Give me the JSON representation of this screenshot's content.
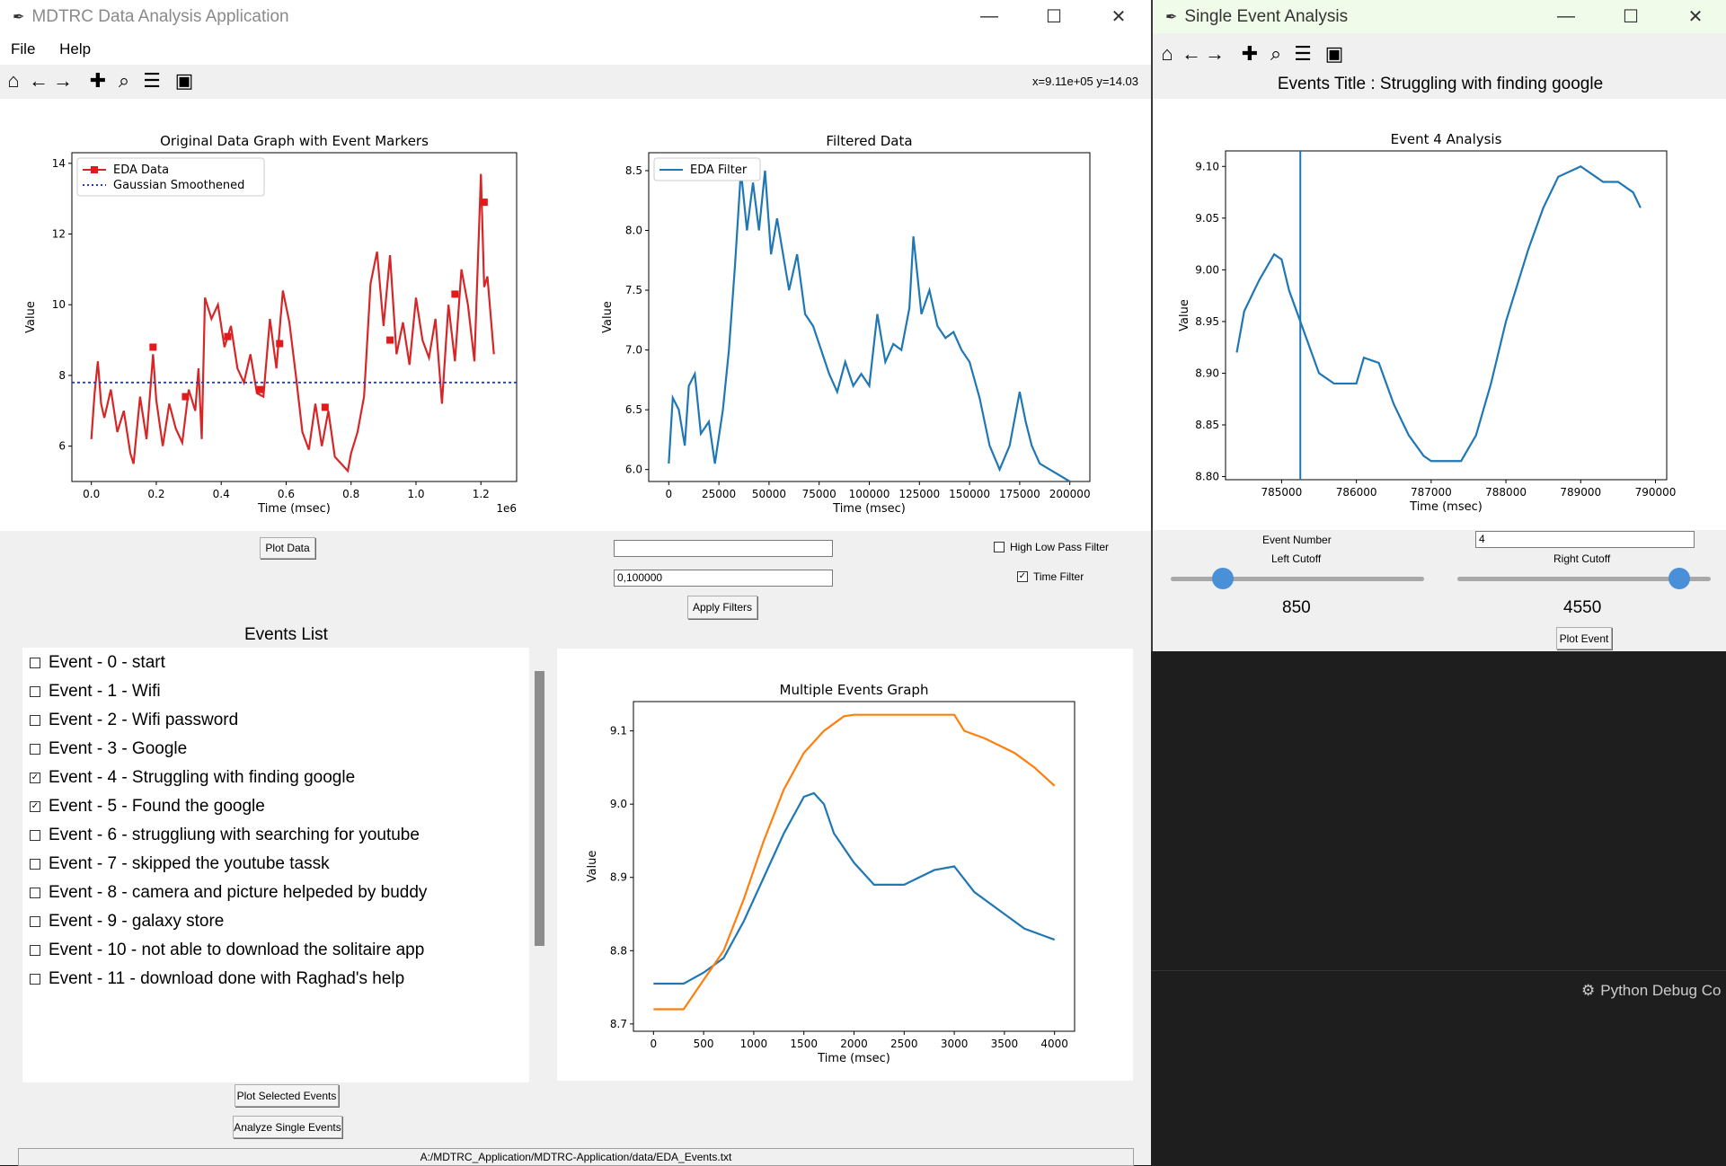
{
  "main_window": {
    "title": "MDTRC Data Analysis Application",
    "menu": [
      "File",
      "Help"
    ],
    "coord_readout": "x=9.11e+05 y=14.03"
  },
  "toolbar_icons": [
    "home-icon",
    "back-arrow-icon",
    "forward-arrow-icon",
    "pan-icon",
    "zoom-icon",
    "configure-subplots-icon",
    "save-icon"
  ],
  "controls": {
    "plot_data": "Plot Data",
    "filter_entry_1": "",
    "filter_entry_2": "0,100000",
    "high_low_pass": "High Low Pass Filter",
    "high_low_pass_checked": false,
    "time_filter": "Time Filter",
    "time_filter_checked": true,
    "apply_filters": "Apply Filters",
    "plot_selected": "Plot Selected Events",
    "analyze_single": "Analyze Single Events"
  },
  "events": {
    "title": "Events List",
    "items": [
      {
        "label": "Event - 0 - start",
        "checked": false
      },
      {
        "label": "Event - 1 - Wifi",
        "checked": false
      },
      {
        "label": "Event - 2 - Wifi password",
        "checked": false
      },
      {
        "label": "Event - 3 - Google",
        "checked": false
      },
      {
        "label": "Event - 4 - Struggling with finding google",
        "checked": true
      },
      {
        "label": "Event - 5 - Found the google",
        "checked": true
      },
      {
        "label": "Event - 6 - struggliung with searching for youtube",
        "checked": false
      },
      {
        "label": "Event - 7 - skipped the youtube tassk",
        "checked": false
      },
      {
        "label": "Event - 8 - camera and picture helpeded by buddy",
        "checked": false
      },
      {
        "label": "Event - 9 - galaxy store",
        "checked": false
      },
      {
        "label": "Event - 10 - not able to download the solitaire app",
        "checked": false
      },
      {
        "label": "Event - 11 - download done with Raghad's help",
        "checked": false
      }
    ]
  },
  "status_path": "A:/MDTRC_Application/MDTRC-Application/data/EDA_Events.txt",
  "single_window": {
    "title": "Single Event Analysis",
    "events_title": "Events Title : Struggling with finding google",
    "event_number_label": "Event Number",
    "event_number_value": "4",
    "left_cutoff_label": "Left Cutoff",
    "right_cutoff_label": "Right Cutoff",
    "left_cutoff_value": "850",
    "right_cutoff_value": "4550",
    "left_slider_fraction": 0.18,
    "right_slider_fraction": 0.91,
    "plot_event": "Plot Event"
  },
  "debug_label": "Python Debug Co",
  "chart_data": [
    {
      "type": "line",
      "title": "Original Data Graph with Event Markers",
      "xlabel": "Time (msec)",
      "ylabel": "Value",
      "x_offset_label": "1e6",
      "xlim": [
        -0.06,
        1.31
      ],
      "ylim": [
        5.0,
        14.3
      ],
      "xticks": [
        "0.0",
        "0.2",
        "0.4",
        "0.6",
        "0.8",
        "1.0",
        "1.2"
      ],
      "xtick_values": [
        0,
        0.2,
        0.4,
        0.6,
        0.8,
        1.0,
        1.2
      ],
      "yticks": [
        "6",
        "8",
        "10",
        "12",
        "14"
      ],
      "ytick_values": [
        6,
        8,
        10,
        12,
        14
      ],
      "legend": [
        "EDA Data",
        "Gaussian Smoothened"
      ],
      "legend_position": "top-left",
      "series": [
        {
          "name": "EDA Data",
          "color": "#d62728",
          "x": [
            0,
            0.01,
            0.02,
            0.03,
            0.04,
            0.06,
            0.08,
            0.1,
            0.12,
            0.13,
            0.15,
            0.17,
            0.19,
            0.2,
            0.22,
            0.24,
            0.26,
            0.28,
            0.3,
            0.32,
            0.33,
            0.34,
            0.35,
            0.37,
            0.39,
            0.41,
            0.43,
            0.45,
            0.47,
            0.49,
            0.51,
            0.53,
            0.55,
            0.57,
            0.59,
            0.61,
            0.63,
            0.65,
            0.67,
            0.69,
            0.71,
            0.73,
            0.75,
            0.77,
            0.79,
            0.8,
            0.82,
            0.84,
            0.86,
            0.88,
            0.9,
            0.92,
            0.94,
            0.96,
            0.98,
            1.0,
            1.02,
            1.04,
            1.06,
            1.08,
            1.1,
            1.12,
            1.14,
            1.16,
            1.18,
            1.2,
            1.21,
            1.22,
            1.24
          ],
          "y": [
            6.2,
            7.5,
            8.4,
            7.2,
            6.8,
            7.6,
            6.4,
            7.0,
            5.8,
            5.5,
            7.4,
            6.2,
            8.6,
            7.3,
            6.0,
            7.2,
            6.5,
            6.1,
            7.6,
            7.0,
            8.2,
            6.2,
            10.2,
            9.6,
            10.0,
            8.8,
            9.4,
            8.2,
            7.8,
            8.6,
            7.5,
            7.4,
            9.6,
            8.2,
            10.4,
            9.5,
            8.0,
            6.4,
            5.9,
            7.2,
            6.0,
            7.0,
            5.7,
            5.5,
            5.3,
            5.8,
            6.4,
            7.4,
            10.6,
            11.5,
            9.4,
            11.4,
            8.6,
            9.5,
            8.3,
            10.2,
            9.0,
            8.5,
            9.6,
            7.2,
            10.0,
            8.4,
            11.0,
            10.0,
            8.4,
            13.7,
            10.5,
            10.8,
            8.6
          ]
        },
        {
          "name": "Gaussian Smoothened",
          "color": "#1f3fbf",
          "style": "dotted",
          "x": [
            -0.06,
            1.31
          ],
          "y": [
            7.8,
            7.8
          ]
        }
      ],
      "markers": {
        "x": [
          0.19,
          0.29,
          0.42,
          0.52,
          0.58,
          0.72,
          0.92,
          1.12,
          1.21
        ],
        "y": [
          8.8,
          7.4,
          9.1,
          7.6,
          8.9,
          7.1,
          9.0,
          10.3,
          12.9
        ]
      }
    },
    {
      "type": "line",
      "title": "Filtered Data",
      "xlabel": "Time (msec)",
      "ylabel": "Value",
      "xlim": [
        -10000,
        210000
      ],
      "ylim": [
        5.9,
        8.65
      ],
      "xticks": [
        "0",
        "25000",
        "50000",
        "75000",
        "100000",
        "125000",
        "150000",
        "175000",
        "200000"
      ],
      "xtick_values": [
        0,
        25000,
        50000,
        75000,
        100000,
        125000,
        150000,
        175000,
        200000
      ],
      "yticks": [
        "6.0",
        "6.5",
        "7.0",
        "7.5",
        "8.0",
        "8.5"
      ],
      "ytick_values": [
        6.0,
        6.5,
        7.0,
        7.5,
        8.0,
        8.5
      ],
      "legend": [
        "EDA Filter"
      ],
      "legend_position": "top-left",
      "series": [
        {
          "name": "EDA Filter",
          "color": "#1f77b4",
          "x": [
            0,
            2000,
            5000,
            8000,
            10000,
            13000,
            16000,
            20000,
            23000,
            27000,
            30000,
            33000,
            36000,
            39000,
            42000,
            45000,
            48000,
            51000,
            54000,
            57000,
            60000,
            64000,
            68000,
            72000,
            76000,
            80000,
            84000,
            88000,
            92000,
            96000,
            100000,
            104000,
            108000,
            112000,
            116000,
            120000,
            122000,
            126000,
            130000,
            134000,
            138000,
            142000,
            146000,
            150000,
            155000,
            160000,
            165000,
            170000,
            175000,
            178000,
            181000,
            185000,
            190000,
            195000,
            200000
          ],
          "y": [
            6.05,
            6.6,
            6.5,
            6.2,
            6.7,
            6.8,
            6.3,
            6.4,
            6.05,
            6.5,
            7.0,
            7.7,
            8.5,
            8.0,
            8.4,
            8.0,
            8.5,
            7.8,
            8.1,
            7.8,
            7.5,
            7.8,
            7.3,
            7.2,
            7.0,
            6.8,
            6.65,
            6.9,
            6.7,
            6.8,
            6.7,
            7.3,
            6.9,
            7.05,
            7.0,
            7.35,
            7.95,
            7.3,
            7.5,
            7.2,
            7.1,
            7.15,
            7.0,
            6.9,
            6.6,
            6.2,
            6.0,
            6.2,
            6.65,
            6.4,
            6.2,
            6.05,
            6.0,
            5.95,
            5.9
          ]
        }
      ]
    },
    {
      "type": "line",
      "title": "Multiple Events Graph",
      "xlabel": "Time (msec)",
      "ylabel": "Value",
      "xlim": [
        -200,
        4200
      ],
      "ylim": [
        8.69,
        9.14
      ],
      "xticks": [
        "0",
        "500",
        "1000",
        "1500",
        "2000",
        "2500",
        "3000",
        "3500",
        "4000"
      ],
      "xtick_values": [
        0,
        500,
        1000,
        1500,
        2000,
        2500,
        3000,
        3500,
        4000
      ],
      "yticks": [
        "8.7",
        "8.8",
        "8.9",
        "9.0",
        "9.1"
      ],
      "ytick_values": [
        8.7,
        8.8,
        8.9,
        9.0,
        9.1
      ],
      "series": [
        {
          "color": "#1f77b4",
          "x": [
            0,
            300,
            500,
            700,
            900,
            1100,
            1300,
            1500,
            1600,
            1700,
            1800,
            2000,
            2200,
            2500,
            2800,
            3000,
            3200,
            3500,
            3700,
            3900,
            4000
          ],
          "y": [
            8.755,
            8.755,
            8.77,
            8.79,
            8.84,
            8.9,
            8.96,
            9.01,
            9.015,
            9.0,
            8.96,
            8.92,
            8.89,
            8.89,
            8.91,
            8.915,
            8.88,
            8.85,
            8.83,
            8.82,
            8.815
          ]
        },
        {
          "color": "#ff7f0e",
          "x": [
            0,
            300,
            500,
            700,
            900,
            1100,
            1300,
            1500,
            1700,
            1900,
            2000,
            2500,
            3000,
            3100,
            3300,
            3600,
            3800,
            4000
          ],
          "y": [
            8.72,
            8.72,
            8.76,
            8.8,
            8.87,
            8.95,
            9.02,
            9.07,
            9.1,
            9.12,
            9.122,
            9.122,
            9.122,
            9.1,
            9.09,
            9.07,
            9.05,
            9.025
          ]
        }
      ]
    },
    {
      "type": "line",
      "title": "Event 4 Analysis",
      "xlabel": "Time (msec)",
      "ylabel": "Value",
      "xlim": [
        784250,
        790150
      ],
      "ylim": [
        8.797,
        9.115
      ],
      "xticks": [
        "785000",
        "786000",
        "787000",
        "788000",
        "789000",
        "790000"
      ],
      "xtick_values": [
        785000,
        786000,
        787000,
        788000,
        789000,
        790000
      ],
      "yticks": [
        "8.80",
        "8.85",
        "8.90",
        "8.95",
        "9.00",
        "9.05",
        "9.10"
      ],
      "ytick_values": [
        8.8,
        8.85,
        8.9,
        8.95,
        9.0,
        9.05,
        9.1
      ],
      "vline_x": 785250,
      "series": [
        {
          "color": "#1f77b4",
          "x": [
            784400,
            784500,
            784700,
            784900,
            785000,
            785100,
            785300,
            785500,
            785700,
            786000,
            786100,
            786300,
            786500,
            786700,
            786900,
            787000,
            787400,
            787600,
            787800,
            788000,
            788300,
            788500,
            788700,
            789000,
            789300,
            789500,
            789700,
            789800
          ],
          "y": [
            8.92,
            8.96,
            8.99,
            9.015,
            9.01,
            8.98,
            8.94,
            8.9,
            8.89,
            8.89,
            8.915,
            8.91,
            8.87,
            8.84,
            8.82,
            8.815,
            8.815,
            8.84,
            8.89,
            8.95,
            9.02,
            9.06,
            9.09,
            9.1,
            9.085,
            9.085,
            9.075,
            9.06
          ]
        }
      ]
    }
  ]
}
